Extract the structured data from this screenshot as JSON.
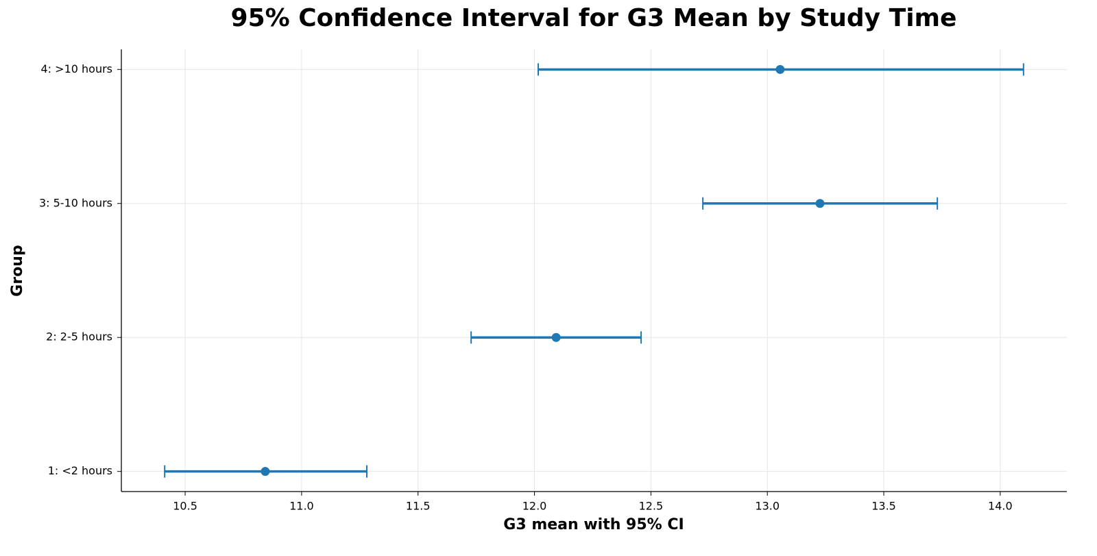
{
  "chart_data": {
    "type": "errorbar",
    "title": "95% Confidence Interval for G3 Mean by Study Time",
    "x_label": "G3 mean with 95% CI",
    "y_label": "Group",
    "categories": [
      "1: <2 hours",
      "2: 2-5 hours",
      "3: 5-10 hours",
      "4: >10 hours"
    ],
    "values": [
      10.844,
      12.093,
      13.226,
      13.055
    ],
    "ci_low": [
      10.412,
      11.728,
      12.723,
      12.016
    ],
    "ci_high": [
      11.28,
      12.458,
      13.73,
      14.1
    ],
    "color": "#1f77b4",
    "xlim": [
      10.226,
      14.286
    ],
    "xticks": [
      10.5,
      {
        "value": 11,
        "label": "11.0"
      },
      11.5,
      {
        "value": 12,
        "label": "12.0"
      },
      12.5,
      {
        "value": 13,
        "label": "13.0"
      },
      13.5,
      {
        "value": 14,
        "label": "14.0"
      }
    ],
    "grid": true
  }
}
